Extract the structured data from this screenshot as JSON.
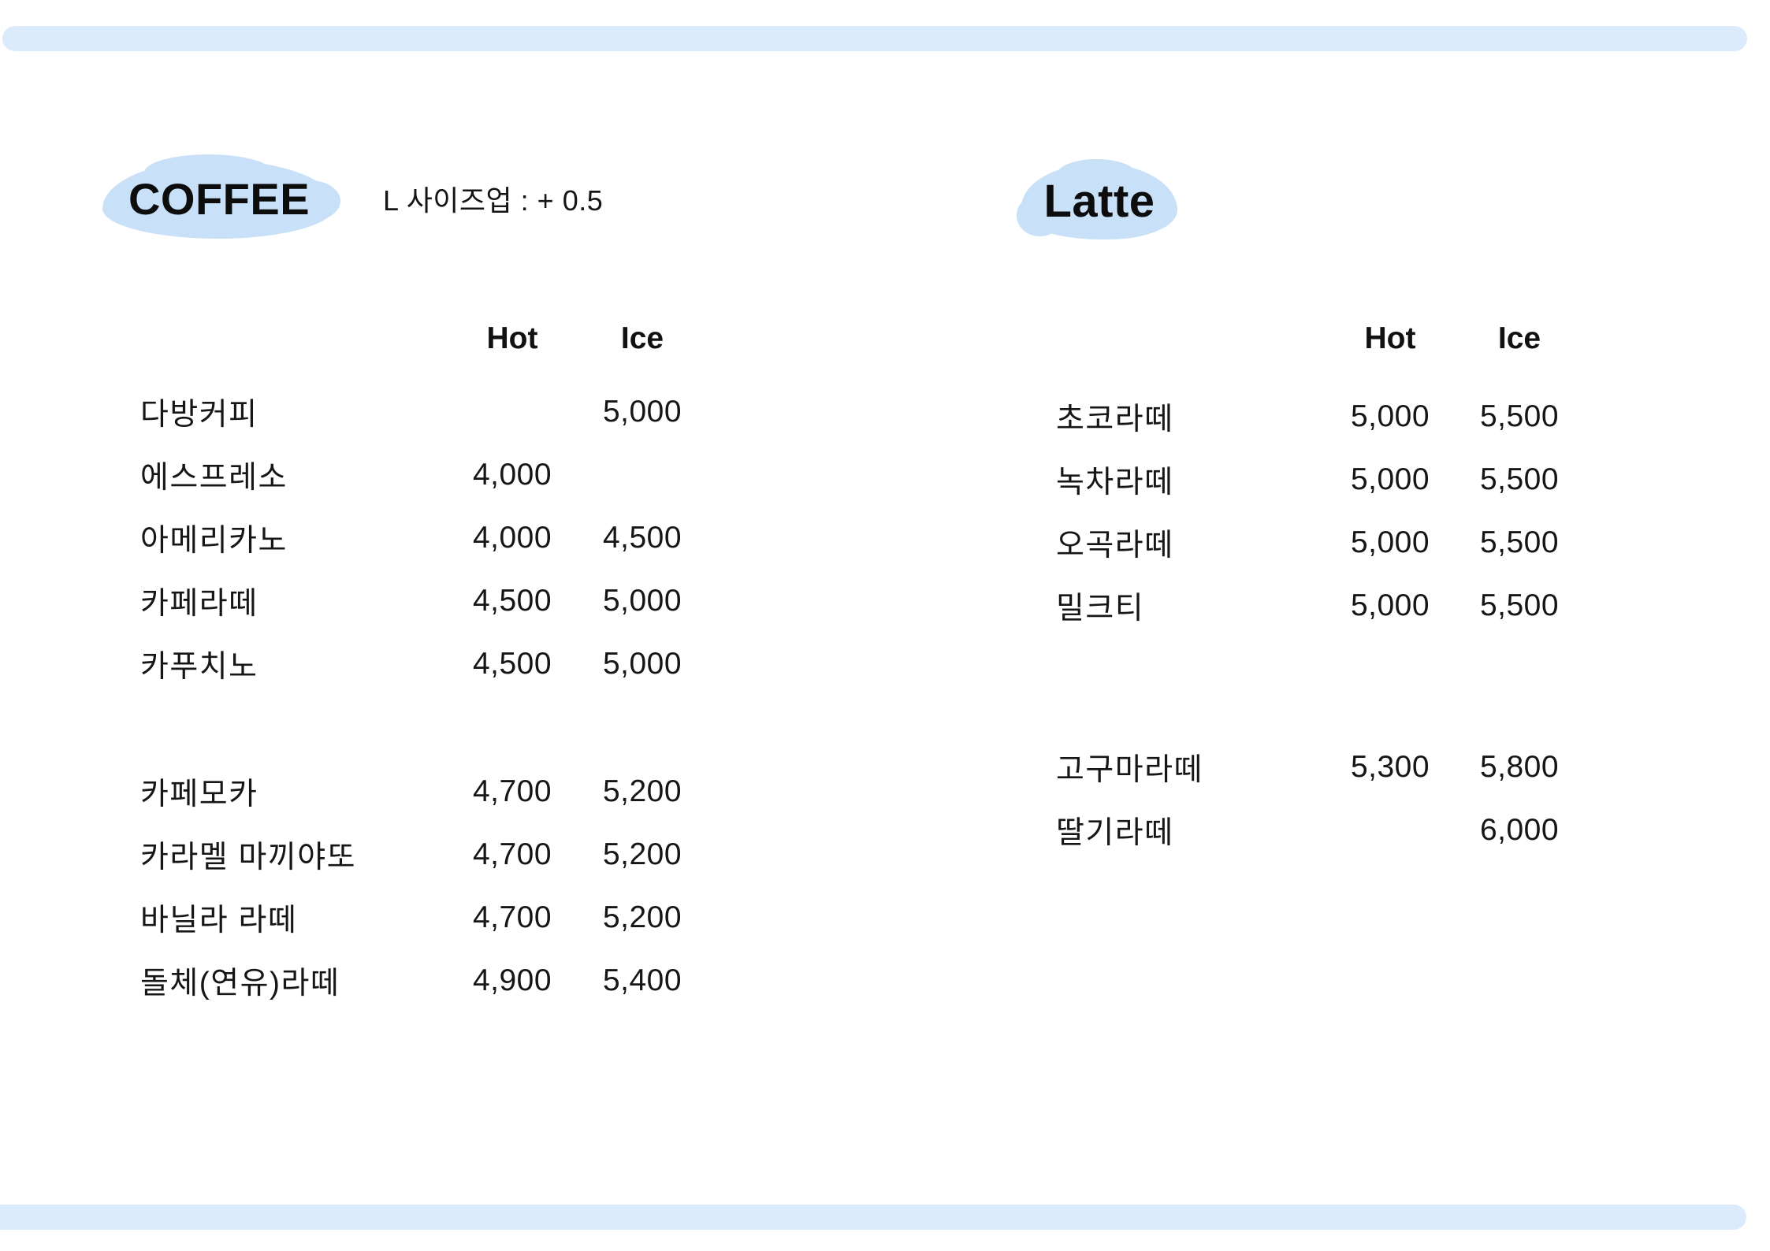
{
  "colors": {
    "accent_blue": "#c8e1f8",
    "bar_blue": "#dcebfc",
    "text": "#151515"
  },
  "coffee": {
    "title": "COFFEE",
    "note": "L 사이즈업 : + 0.5",
    "columns": {
      "hot": "Hot",
      "ice": "Ice"
    },
    "items": [
      {
        "name": "다방커피",
        "hot": "",
        "ice": "5,000",
        "group": 1
      },
      {
        "name": "에스프레소",
        "hot": "4,000",
        "ice": "",
        "group": 1
      },
      {
        "name": "아메리카노",
        "hot": "4,000",
        "ice": "4,500",
        "group": 1
      },
      {
        "name": "카페라떼",
        "hot": "4,500",
        "ice": "5,000",
        "group": 1
      },
      {
        "name": "카푸치노",
        "hot": "4,500",
        "ice": "5,000",
        "group": 1
      },
      {
        "name": "카페모카",
        "hot": "4,700",
        "ice": "5,200",
        "group": 2
      },
      {
        "name": "카라멜 마끼야또",
        "hot": "4,700",
        "ice": "5,200",
        "group": 2
      },
      {
        "name": "바닐라 라떼",
        "hot": "4,700",
        "ice": "5,200",
        "group": 2
      },
      {
        "name": "돌체(연유)라떼",
        "hot": "4,900",
        "ice": "5,400",
        "group": 2
      }
    ]
  },
  "latte": {
    "title": "Latte",
    "columns": {
      "hot": "Hot",
      "ice": "Ice"
    },
    "items": [
      {
        "name": "초코라떼",
        "hot": "5,000",
        "ice": "5,500",
        "group": 1
      },
      {
        "name": "녹차라떼",
        "hot": "5,000",
        "ice": "5,500",
        "group": 1
      },
      {
        "name": "오곡라떼",
        "hot": "5,000",
        "ice": "5,500",
        "group": 1
      },
      {
        "name": "밀크티",
        "hot": "5,000",
        "ice": "5,500",
        "group": 1
      },
      {
        "name": "고구마라떼",
        "hot": "5,300",
        "ice": "5,800",
        "group": 2
      },
      {
        "name": "딸기라떼",
        "hot": "",
        "ice": "6,000",
        "group": 2
      }
    ]
  }
}
